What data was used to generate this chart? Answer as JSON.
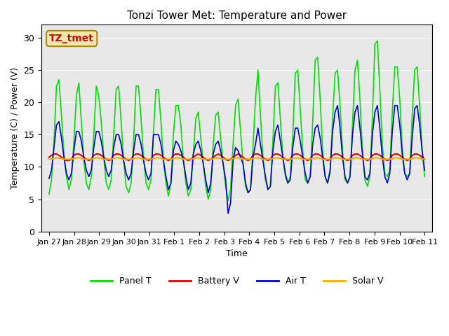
{
  "title": "Tonzi Tower Met: Temperature and Power",
  "xlabel": "Time",
  "ylabel": "Temperature (C) / Power (V)",
  "xlim_days": 15.5,
  "ylim": [
    0,
    32
  ],
  "yticks": [
    0,
    5,
    10,
    15,
    20,
    25,
    30
  ],
  "bg_color": "#e8e8e8",
  "outer_bg": "#ffffff",
  "annotation_text": "TZ_tmet",
  "annotation_color": "#cc0000",
  "annotation_bg": "#f5e6b0",
  "legend_entries": [
    "Panel T",
    "Battery V",
    "Air T",
    "Solar V"
  ],
  "line_colors": [
    "#00dd00",
    "#dd0000",
    "#0000cc",
    "#ffaa00"
  ],
  "panel_t": [
    5.8,
    8.0,
    14.0,
    22.5,
    23.5,
    18.0,
    12.0,
    8.5,
    6.5,
    8.0,
    14.0,
    21.0,
    23.0,
    17.0,
    11.0,
    7.5,
    6.5,
    8.5,
    15.0,
    22.5,
    21.0,
    17.0,
    11.5,
    7.5,
    6.5,
    8.0,
    15.0,
    22.0,
    22.5,
    17.0,
    11.0,
    7.0,
    6.0,
    7.5,
    14.0,
    22.5,
    22.5,
    17.5,
    11.5,
    7.5,
    6.5,
    8.0,
    15.5,
    22.0,
    22.0,
    17.0,
    11.0,
    7.5,
    5.5,
    7.5,
    15.0,
    19.5,
    19.5,
    16.5,
    11.0,
    7.5,
    5.5,
    6.5,
    12.0,
    17.5,
    18.5,
    14.5,
    10.5,
    7.0,
    5.0,
    6.5,
    13.5,
    18.0,
    18.5,
    14.5,
    10.5,
    7.0,
    4.8,
    6.5,
    13.5,
    19.5,
    20.5,
    15.5,
    10.5,
    7.0,
    6.0,
    6.5,
    13.0,
    20.5,
    25.0,
    18.0,
    11.5,
    8.0,
    6.5,
    7.0,
    14.0,
    22.5,
    23.0,
    17.5,
    11.5,
    8.5,
    7.5,
    8.5,
    15.0,
    24.5,
    25.0,
    19.0,
    12.5,
    8.0,
    7.5,
    8.5,
    17.0,
    26.5,
    27.0,
    20.5,
    12.5,
    8.5,
    7.5,
    9.0,
    17.5,
    24.5,
    25.0,
    19.5,
    12.5,
    8.0,
    7.5,
    8.5,
    16.5,
    25.0,
    26.5,
    20.5,
    12.5,
    8.0,
    7.0,
    8.5,
    17.5,
    29.0,
    29.5,
    22.0,
    13.5,
    9.0,
    8.5,
    9.5,
    18.5,
    25.5,
    25.5,
    20.5,
    13.0,
    9.0,
    8.5,
    9.0,
    18.0,
    25.0,
    25.5,
    19.5,
    12.5,
    8.5
  ],
  "battery_v": [
    11.5,
    11.8,
    12.0,
    12.0,
    11.8,
    11.5,
    11.2,
    11.0,
    11.0,
    11.2,
    11.8,
    12.0,
    12.0,
    11.8,
    11.5,
    11.2,
    11.0,
    11.2,
    11.8,
    12.0,
    12.0,
    11.8,
    11.5,
    11.2,
    11.0,
    11.2,
    11.8,
    12.0,
    12.0,
    11.8,
    11.5,
    11.2,
    11.0,
    11.2,
    11.8,
    12.0,
    12.0,
    11.8,
    11.5,
    11.2,
    11.0,
    11.2,
    11.8,
    12.0,
    12.0,
    11.8,
    11.5,
    11.2,
    11.0,
    11.2,
    11.8,
    12.0,
    12.0,
    11.8,
    11.5,
    11.2,
    11.0,
    11.2,
    11.5,
    11.8,
    12.0,
    11.8,
    11.5,
    11.2,
    11.0,
    11.2,
    11.5,
    11.8,
    12.0,
    11.8,
    11.5,
    11.2,
    11.0,
    11.2,
    11.5,
    11.8,
    12.0,
    11.8,
    11.5,
    11.2,
    11.0,
    11.2,
    11.8,
    12.0,
    12.0,
    11.8,
    11.5,
    11.2,
    11.0,
    11.2,
    11.8,
    12.0,
    12.0,
    11.8,
    11.5,
    11.2,
    11.0,
    11.2,
    11.8,
    12.0,
    12.0,
    11.8,
    11.5,
    11.2,
    11.0,
    11.2,
    11.8,
    12.0,
    12.0,
    11.8,
    11.5,
    11.2,
    11.0,
    11.2,
    11.8,
    12.0,
    12.0,
    11.8,
    11.5,
    11.2,
    11.0,
    11.2,
    11.8,
    12.0,
    12.0,
    11.8,
    11.5,
    11.2,
    11.0,
    11.2,
    11.8,
    12.0,
    12.0,
    11.8,
    11.5,
    11.2,
    11.0,
    11.2,
    11.8,
    12.0,
    12.0,
    11.8,
    11.5,
    11.2,
    11.0,
    11.2,
    11.8,
    12.0,
    12.0,
    11.8,
    11.5,
    11.2
  ],
  "air_t": [
    8.2,
    9.5,
    13.0,
    16.5,
    17.0,
    14.5,
    11.5,
    9.0,
    8.0,
    9.0,
    12.5,
    15.5,
    15.5,
    14.0,
    11.5,
    9.5,
    8.5,
    9.5,
    13.0,
    15.5,
    15.5,
    14.0,
    11.5,
    9.5,
    8.5,
    9.5,
    13.0,
    15.0,
    15.0,
    13.5,
    11.0,
    9.0,
    8.0,
    9.0,
    12.5,
    15.0,
    15.0,
    13.5,
    11.0,
    9.0,
    8.0,
    9.0,
    15.0,
    15.0,
    15.0,
    13.5,
    11.0,
    8.5,
    6.5,
    7.5,
    12.5,
    14.0,
    13.5,
    12.5,
    11.0,
    8.5,
    6.5,
    7.5,
    12.0,
    13.5,
    14.0,
    12.5,
    10.5,
    8.0,
    6.0,
    7.5,
    12.0,
    13.5,
    14.0,
    12.5,
    10.5,
    8.0,
    2.8,
    4.5,
    11.0,
    13.0,
    12.5,
    11.5,
    10.5,
    7.5,
    6.0,
    6.5,
    11.5,
    13.5,
    16.0,
    13.5,
    11.0,
    8.5,
    6.5,
    7.0,
    12.5,
    15.5,
    16.5,
    14.0,
    11.5,
    9.0,
    7.5,
    8.0,
    13.0,
    16.0,
    16.0,
    14.0,
    11.5,
    9.0,
    7.5,
    8.5,
    13.5,
    16.0,
    16.5,
    14.5,
    11.5,
    8.5,
    7.5,
    9.5,
    15.5,
    18.5,
    19.5,
    16.0,
    11.5,
    8.5,
    7.5,
    8.5,
    15.0,
    18.5,
    19.5,
    16.0,
    12.0,
    8.5,
    8.0,
    9.0,
    15.0,
    18.5,
    19.5,
    16.0,
    11.5,
    8.5,
    7.5,
    9.0,
    15.5,
    19.5,
    19.5,
    16.5,
    12.0,
    9.0,
    8.0,
    9.0,
    14.5,
    19.0,
    19.5,
    16.5,
    12.5,
    9.5
  ],
  "solar_v": [
    11.2,
    11.2,
    11.3,
    11.4,
    11.4,
    11.3,
    11.2,
    11.2,
    11.2,
    11.2,
    11.3,
    11.4,
    11.4,
    11.3,
    11.2,
    11.2,
    11.2,
    11.2,
    11.3,
    11.4,
    11.4,
    11.3,
    11.2,
    11.2,
    11.2,
    11.2,
    11.3,
    11.4,
    11.4,
    11.3,
    11.2,
    11.2,
    11.2,
    11.2,
    11.3,
    11.4,
    11.4,
    11.3,
    11.2,
    11.2,
    11.2,
    11.2,
    11.3,
    11.4,
    11.4,
    11.3,
    11.2,
    11.2,
    11.2,
    11.2,
    11.3,
    11.4,
    11.4,
    11.3,
    11.2,
    11.2,
    11.2,
    11.2,
    11.3,
    11.4,
    11.4,
    11.3,
    11.2,
    11.2,
    11.2,
    11.2,
    11.3,
    11.4,
    11.4,
    11.3,
    11.2,
    11.2,
    11.2,
    11.2,
    11.3,
    11.4,
    11.4,
    11.3,
    11.2,
    11.2,
    11.2,
    11.2,
    11.3,
    11.4,
    11.4,
    11.3,
    11.2,
    11.2,
    11.2,
    11.2,
    11.3,
    11.4,
    11.4,
    11.3,
    11.2,
    11.2,
    11.2,
    11.2,
    11.3,
    11.4,
    11.4,
    11.3,
    11.2,
    11.2,
    11.2,
    11.2,
    11.3,
    11.4,
    11.4,
    11.3,
    11.2,
    11.2,
    11.2,
    11.2,
    11.3,
    11.4,
    11.4,
    11.3,
    11.2,
    11.2,
    11.2,
    11.2,
    11.3,
    11.4,
    11.4,
    11.3,
    11.2,
    11.2,
    11.2,
    11.2,
    11.3,
    11.4,
    11.4,
    11.3,
    11.2,
    11.2,
    11.2,
    11.2,
    11.3,
    11.4,
    11.4,
    11.3,
    11.2,
    11.2,
    11.2,
    11.2,
    11.3,
    11.4,
    11.4,
    11.3,
    11.2,
    11.2
  ],
  "xtick_labels": [
    "Jan 27",
    "Jan 28",
    "Jan 29",
    "Jan 30",
    "Jan 31",
    "Feb 1",
    "Feb 2",
    "Feb 3",
    "Feb 4",
    "Feb 5",
    "Feb 6",
    "Feb 7",
    "Feb 8",
    "Feb 9",
    "Feb 10",
    "Feb 11"
  ],
  "n_days": 16,
  "start_day": 0
}
